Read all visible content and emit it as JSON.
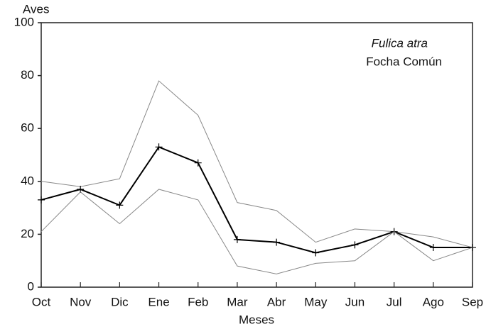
{
  "chart_data": {
    "type": "line",
    "ylabel": "Aves",
    "xlabel": "Meses",
    "annotations": [
      "Fulica atra",
      "Focha Común"
    ],
    "categories": [
      "Oct",
      "Nov",
      "Dic",
      "Ene",
      "Feb",
      "Mar",
      "Abr",
      "May",
      "Jun",
      "Jul",
      "Ago",
      "Sep"
    ],
    "series": [
      {
        "color": "#888888",
        "values": [
          40,
          38,
          41,
          78,
          65,
          32,
          29,
          17,
          22,
          21,
          19,
          15
        ]
      },
      {
        "color": "#000000",
        "marker": "+",
        "values": [
          33,
          37,
          31,
          53,
          47,
          18,
          17,
          13,
          16,
          21,
          15,
          15
        ]
      },
      {
        "color": "#888888",
        "values": [
          21,
          36,
          24,
          37,
          33,
          8,
          5,
          9,
          10,
          21,
          10,
          15
        ]
      }
    ],
    "ylim": [
      0,
      100
    ],
    "yticks": [
      0,
      20,
      40,
      60,
      80,
      100
    ]
  }
}
